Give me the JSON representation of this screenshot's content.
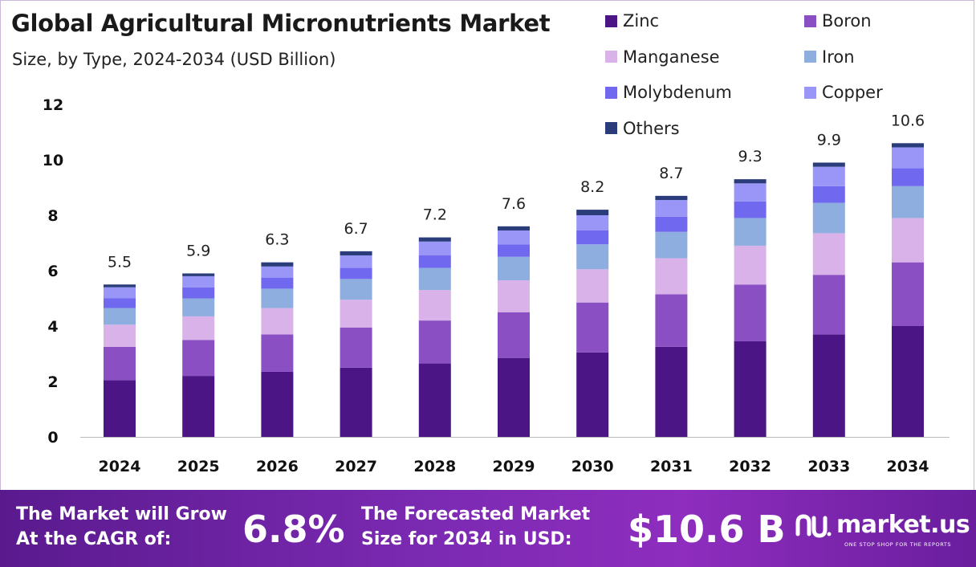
{
  "header": {
    "title": "Global Agricultural Micronutrients Market",
    "subtitle": "Size, by Type, 2024-2034 (USD Billion)"
  },
  "chart_data": {
    "type": "bar",
    "stacked": true,
    "categories": [
      "2024",
      "2025",
      "2026",
      "2027",
      "2028",
      "2029",
      "2030",
      "2031",
      "2032",
      "2033",
      "2034"
    ],
    "series": [
      {
        "name": "Zinc",
        "color": "#4b1585",
        "values": [
          2.05,
          2.2,
          2.35,
          2.5,
          2.65,
          2.85,
          3.05,
          3.25,
          3.45,
          3.7,
          4.0
        ]
      },
      {
        "name": "Boron",
        "color": "#8b4fc4",
        "values": [
          1.2,
          1.3,
          1.35,
          1.45,
          1.55,
          1.65,
          1.8,
          1.9,
          2.05,
          2.15,
          2.3
        ]
      },
      {
        "name": "Manganese",
        "color": "#d8b2e8",
        "values": [
          0.8,
          0.85,
          0.95,
          1.0,
          1.1,
          1.15,
          1.2,
          1.3,
          1.4,
          1.5,
          1.6
        ]
      },
      {
        "name": "Iron",
        "color": "#8faee0",
        "values": [
          0.6,
          0.65,
          0.7,
          0.75,
          0.8,
          0.85,
          0.9,
          0.95,
          1.0,
          1.1,
          1.15
        ]
      },
      {
        "name": "Molybdenum",
        "color": "#7068ee",
        "values": [
          0.35,
          0.4,
          0.4,
          0.4,
          0.45,
          0.45,
          0.5,
          0.55,
          0.6,
          0.6,
          0.65
        ]
      },
      {
        "name": "Copper",
        "color": "#9a96f8",
        "values": [
          0.4,
          0.4,
          0.4,
          0.45,
          0.5,
          0.5,
          0.55,
          0.6,
          0.65,
          0.7,
          0.75
        ]
      },
      {
        "name": "Others",
        "color": "#2a3d7a",
        "values": [
          0.1,
          0.1,
          0.15,
          0.15,
          0.15,
          0.15,
          0.2,
          0.15,
          0.15,
          0.15,
          0.15
        ]
      }
    ],
    "totals": [
      5.5,
      5.9,
      6.3,
      6.7,
      7.2,
      7.6,
      8.2,
      8.7,
      9.3,
      9.9,
      10.6
    ],
    "total_labels": [
      "5.5",
      "5.9",
      "6.3",
      "6.7",
      "7.2",
      "7.6",
      "8.2",
      "8.7",
      "9.3",
      "9.9",
      "10.6"
    ],
    "yticks": [
      "0",
      "2",
      "4",
      "6",
      "8",
      "10",
      "12"
    ],
    "ylim": [
      0,
      12
    ],
    "grid": false,
    "legend_position": "top-right"
  },
  "footer": {
    "cagr_line1": "The Market will Grow",
    "cagr_line2": "At the CAGR of:",
    "cagr_value": "6.8%",
    "forecast_line1": "The Forecasted Market",
    "forecast_line2": "Size for 2034 in USD:",
    "forecast_value": "$10.6 B",
    "brand_name": "market.us",
    "brand_tagline": "ONE STOP SHOP FOR THE REPORTS"
  }
}
